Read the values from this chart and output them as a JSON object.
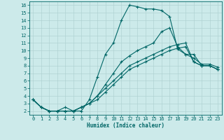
{
  "xlabel": "Humidex (Indice chaleur)",
  "bg_color": "#cceaea",
  "line_color": "#006666",
  "grid_color": "#aacece",
  "xlim": [
    -0.5,
    23.5
  ],
  "ylim": [
    1.5,
    16.5
  ],
  "xticks": [
    0,
    1,
    2,
    3,
    4,
    5,
    6,
    7,
    8,
    9,
    10,
    11,
    12,
    13,
    14,
    15,
    16,
    17,
    18,
    19,
    20,
    21,
    22,
    23
  ],
  "yticks": [
    2,
    3,
    4,
    5,
    6,
    7,
    8,
    9,
    10,
    11,
    12,
    13,
    14,
    15,
    16
  ],
  "line1_x": [
    0,
    1,
    2,
    3,
    4,
    5,
    6,
    7,
    8,
    9,
    10,
    11,
    12,
    13,
    14,
    15,
    16,
    17,
    18,
    19,
    20,
    21,
    22,
    23
  ],
  "line1_y": [
    3.5,
    2.5,
    2.0,
    2.0,
    2.0,
    2.0,
    2.0,
    3.5,
    6.5,
    9.5,
    11.0,
    14.0,
    16.0,
    15.8,
    15.5,
    15.5,
    15.3,
    14.5,
    10.2,
    9.5,
    9.0,
    8.2,
    8.2,
    7.8
  ],
  "line2_x": [
    0,
    1,
    2,
    3,
    4,
    5,
    6,
    7,
    8,
    9,
    10,
    11,
    12,
    13,
    14,
    15,
    16,
    17,
    18,
    19,
    20,
    21,
    22,
    23
  ],
  "line2_y": [
    3.5,
    2.5,
    2.0,
    2.0,
    2.0,
    2.0,
    2.5,
    3.0,
    4.0,
    5.5,
    7.0,
    8.5,
    9.3,
    10.0,
    10.5,
    11.0,
    12.5,
    13.0,
    10.5,
    9.5,
    9.5,
    8.0,
    8.0,
    7.5
  ],
  "line3_x": [
    0,
    1,
    2,
    3,
    4,
    5,
    6,
    7,
    8,
    9,
    10,
    11,
    12,
    13,
    14,
    15,
    16,
    17,
    18,
    19,
    20,
    21,
    22,
    23
  ],
  "line3_y": [
    3.5,
    2.5,
    2.0,
    2.0,
    2.0,
    2.0,
    2.5,
    3.0,
    3.5,
    4.5,
    5.5,
    6.5,
    7.5,
    8.0,
    8.5,
    9.0,
    9.5,
    10.0,
    10.3,
    10.5,
    8.5,
    8.0,
    8.0,
    7.5
  ],
  "line4_x": [
    0,
    1,
    2,
    3,
    4,
    5,
    6,
    7,
    8,
    9,
    10,
    11,
    12,
    13,
    14,
    15,
    16,
    17,
    18,
    19,
    20,
    21,
    22,
    23
  ],
  "line4_y": [
    3.5,
    2.5,
    2.0,
    2.0,
    2.5,
    2.0,
    2.5,
    3.0,
    4.0,
    5.0,
    6.0,
    7.0,
    8.0,
    8.5,
    9.0,
    9.5,
    10.0,
    10.5,
    10.8,
    11.0,
    8.5,
    8.0,
    8.0,
    7.5
  ]
}
